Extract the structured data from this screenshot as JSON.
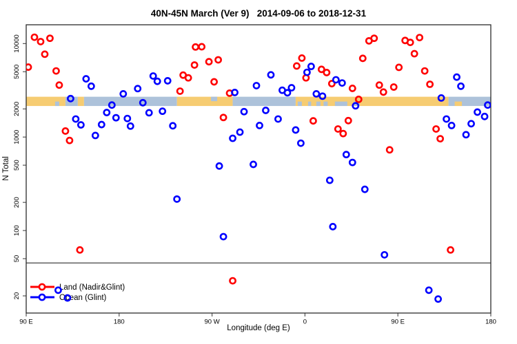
{
  "title": "40N-45N March (Ver 9)   2014-09-06 to 2018-12-31",
  "axes": {
    "y_label": "N Total",
    "x_label": "Longitude (deg E)"
  },
  "legend": {
    "items": [
      {
        "label": "Land (Nadir&Glint)",
        "color": "#ff0000"
      },
      {
        "label": "Ocean (Glint)",
        "color": "#0000ff"
      }
    ]
  },
  "chart_data": {
    "type": "scatter",
    "title": "40N-45N March (Ver 9)   2014-09-06 to 2018-12-31",
    "xlabel": "Longitude (deg E)",
    "ylabel": "N Total",
    "x_axis": {
      "note": "x stored as continuous degrees east starting at left edge = 90E, wrapping past 180 and 360",
      "range_deg": [
        90,
        540
      ],
      "ticks": [
        {
          "deg": 90,
          "label": "90 E"
        },
        {
          "deg": 180,
          "label": "180"
        },
        {
          "deg": 270,
          "label": "90 W"
        },
        {
          "deg": 360,
          "label": "0"
        },
        {
          "deg": 450,
          "label": "90 E"
        },
        {
          "deg": 540,
          "label": "180"
        }
      ]
    },
    "y_axis": {
      "scale": "log",
      "range": [
        13.1,
        15900
      ],
      "ticks": [
        20,
        50,
        100,
        200,
        500,
        1000,
        2000,
        5000,
        10000
      ]
    },
    "reference_line_y": 45,
    "map_band": {
      "value_min": 2150,
      "value_max": 2700,
      "land_color": "#f6cc72",
      "ocean_color": "#adc2da",
      "segments": [
        {
          "from": 90,
          "to": 128,
          "type": "land"
        },
        {
          "from": 128,
          "to": 140,
          "type": "ocean"
        },
        {
          "from": 140,
          "to": 146,
          "type": "land"
        },
        {
          "from": 146,
          "to": 236,
          "type": "ocean"
        },
        {
          "from": 236,
          "to": 290,
          "type": "land"
        },
        {
          "from": 290,
          "to": 351,
          "type": "ocean"
        },
        {
          "from": 351,
          "to": 499,
          "type": "land"
        },
        {
          "from": 499,
          "to": 540,
          "type": "ocean"
        }
      ],
      "chips": [
        {
          "from": 118,
          "to": 122,
          "half": "lower",
          "type": "ocean"
        },
        {
          "from": 269,
          "to": 275,
          "half": "upper",
          "type": "ocean"
        },
        {
          "from": 353,
          "to": 357,
          "half": "lower",
          "type": "ocean"
        },
        {
          "from": 363,
          "to": 366,
          "half": "lower",
          "type": "ocean"
        },
        {
          "from": 371,
          "to": 375,
          "half": "lower",
          "type": "ocean"
        },
        {
          "from": 378,
          "to": 382,
          "half": "lower",
          "type": "ocean"
        },
        {
          "from": 389,
          "to": 401,
          "half": "lower",
          "type": "ocean"
        },
        {
          "from": 407,
          "to": 413,
          "half": "lower",
          "type": "ocean"
        },
        {
          "from": 505,
          "to": 512,
          "half": "lower",
          "type": "land"
        }
      ]
    },
    "series": [
      {
        "name": "Land (Nadir&Glint)",
        "color": "#ff0000",
        "points": [
          [
            98,
            11700
          ],
          [
            104,
            10500
          ],
          [
            113,
            11400
          ],
          [
            108,
            7700
          ],
          [
            92,
            5600
          ],
          [
            119,
            5100
          ],
          [
            122,
            3600
          ],
          [
            128,
            1160
          ],
          [
            132,
            920
          ],
          [
            142,
            62
          ],
          [
            254,
            9200
          ],
          [
            260,
            9250
          ],
          [
            267,
            6400
          ],
          [
            276,
            6700
          ],
          [
            253,
            5900
          ],
          [
            242,
            4600
          ],
          [
            247,
            4300
          ],
          [
            239,
            3100
          ],
          [
            272,
            3900
          ],
          [
            287,
            2950
          ],
          [
            281,
            1620
          ],
          [
            290,
            29
          ],
          [
            352,
            5760
          ],
          [
            357,
            7000
          ],
          [
            361,
            4300
          ],
          [
            368,
            1490
          ],
          [
            376,
            5300
          ],
          [
            381,
            4900
          ],
          [
            386,
            3730
          ],
          [
            392,
            1220
          ],
          [
            397,
            1090
          ],
          [
            402,
            1500
          ],
          [
            406,
            3320
          ],
          [
            412,
            2530
          ],
          [
            416,
            6950
          ],
          [
            422,
            10700
          ],
          [
            427,
            11400
          ],
          [
            432,
            3600
          ],
          [
            436,
            3030
          ],
          [
            442,
            730
          ],
          [
            446,
            3430
          ],
          [
            451,
            5570
          ],
          [
            457,
            10800
          ],
          [
            462,
            10300
          ],
          [
            471,
            11600
          ],
          [
            466,
            7800
          ],
          [
            476,
            5100
          ],
          [
            481,
            3670
          ],
          [
            487,
            1220
          ],
          [
            491,
            960
          ],
          [
            501,
            62
          ]
        ]
      },
      {
        "name": "Ocean (Glint)",
        "color": "#0000ff",
        "points": [
          [
            121,
            23
          ],
          [
            130,
            19
          ],
          [
            133,
            2580
          ],
          [
            138,
            1560
          ],
          [
            143,
            1350
          ],
          [
            148,
            4200
          ],
          [
            153,
            3500
          ],
          [
            157,
            1040
          ],
          [
            163,
            1360
          ],
          [
            168,
            1830
          ],
          [
            173,
            2200
          ],
          [
            177,
            1610
          ],
          [
            184,
            2900
          ],
          [
            188,
            1580
          ],
          [
            191,
            1310
          ],
          [
            198,
            3300
          ],
          [
            203,
            2330
          ],
          [
            209,
            1820
          ],
          [
            213,
            4500
          ],
          [
            217,
            3950
          ],
          [
            222,
            1890
          ],
          [
            227,
            4000
          ],
          [
            232,
            1320
          ],
          [
            236,
            217
          ],
          [
            277,
            490
          ],
          [
            281,
            86
          ],
          [
            290,
            970
          ],
          [
            292,
            3000
          ],
          [
            297,
            1130
          ],
          [
            301,
            1870
          ],
          [
            310,
            510
          ],
          [
            313,
            3550
          ],
          [
            316,
            1330
          ],
          [
            322,
            1930
          ],
          [
            327,
            4630
          ],
          [
            334,
            1560
          ],
          [
            338,
            3170
          ],
          [
            343,
            2980
          ],
          [
            347,
            3370
          ],
          [
            351,
            1190
          ],
          [
            356,
            860
          ],
          [
            362,
            4930
          ],
          [
            366,
            5700
          ],
          [
            371,
            2900
          ],
          [
            377,
            2740
          ],
          [
            384,
            345
          ],
          [
            387,
            110
          ],
          [
            390,
            4100
          ],
          [
            396,
            3790
          ],
          [
            400,
            650
          ],
          [
            406,
            535
          ],
          [
            409,
            2160
          ],
          [
            418,
            276
          ],
          [
            437,
            55
          ],
          [
            480,
            23
          ],
          [
            489,
            18.5
          ],
          [
            492,
            2620
          ],
          [
            497,
            1560
          ],
          [
            502,
            1330
          ],
          [
            507,
            4380
          ],
          [
            511,
            3500
          ],
          [
            516,
            1060
          ],
          [
            521,
            1390
          ],
          [
            527,
            1850
          ],
          [
            534,
            1660
          ],
          [
            537,
            2200
          ]
        ]
      }
    ]
  }
}
